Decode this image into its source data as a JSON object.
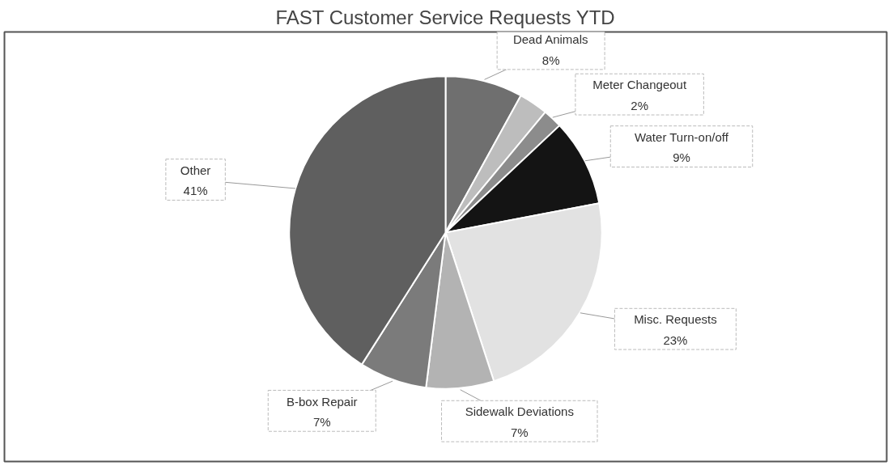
{
  "chart_data": {
    "type": "pie",
    "title": "FAST Customer Service Requests YTD",
    "categories": [
      "Dead Animals",
      null,
      "Meter Changeout",
      "Water Turn-on/off",
      "Misc. Requests",
      "Sidewalk Deviations",
      "B-box Repair",
      "Other"
    ],
    "values": [
      8,
      3,
      2,
      9,
      23,
      7,
      7,
      41
    ],
    "colors": [
      "#6f6f6f",
      "#bdbdbd",
      "#8c8c8c",
      "#141414",
      "#e2e2e2",
      "#b3b3b3",
      "#7b7b7b",
      "#5f5f5f"
    ],
    "value_labels": [
      "8%",
      null,
      "2%",
      "9%",
      "23%",
      "7%",
      "7%",
      "41%"
    ]
  }
}
